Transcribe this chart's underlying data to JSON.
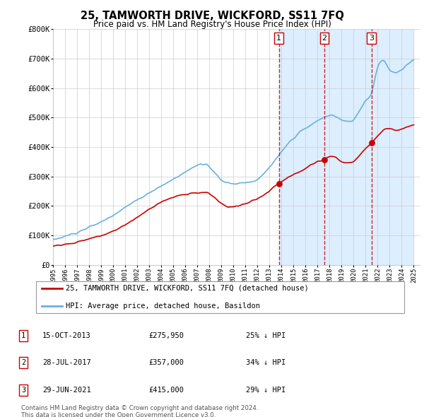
{
  "title": "25, TAMWORTH DRIVE, WICKFORD, SS11 7FQ",
  "subtitle": "Price paid vs. HM Land Registry's House Price Index (HPI)",
  "ylim": [
    0,
    800000
  ],
  "yticks": [
    0,
    100000,
    200000,
    300000,
    400000,
    500000,
    600000,
    700000,
    800000
  ],
  "ytick_labels": [
    "£0",
    "£100K",
    "£200K",
    "£300K",
    "£400K",
    "£500K",
    "£600K",
    "£700K",
    "£800K"
  ],
  "hpi_color": "#6ab0de",
  "price_color": "#cc0000",
  "vline_color": "#cc0000",
  "shade_color": "#ddeeff",
  "vline_dates": [
    2013.79,
    2017.57,
    2021.49
  ],
  "trans_dates": [
    2013.79,
    2017.57,
    2021.49
  ],
  "trans_prices": [
    275950,
    357000,
    415000
  ],
  "legend_entries": [
    "25, TAMWORTH DRIVE, WICKFORD, SS11 7FQ (detached house)",
    "HPI: Average price, detached house, Basildon"
  ],
  "table_rows": [
    {
      "num": "1",
      "date": "15-OCT-2013",
      "price": "£275,950",
      "pct": "25% ↓ HPI"
    },
    {
      "num": "2",
      "date": "28-JUL-2017",
      "price": "£357,000",
      "pct": "34% ↓ HPI"
    },
    {
      "num": "3",
      "date": "29-JUN-2021",
      "price": "£415,000",
      "pct": "29% ↓ HPI"
    }
  ],
  "footnote1": "Contains HM Land Registry data © Crown copyright and database right 2024.",
  "footnote2": "This data is licensed under the Open Government Licence v3.0.",
  "background_color": "#ffffff",
  "grid_color": "#cccccc"
}
